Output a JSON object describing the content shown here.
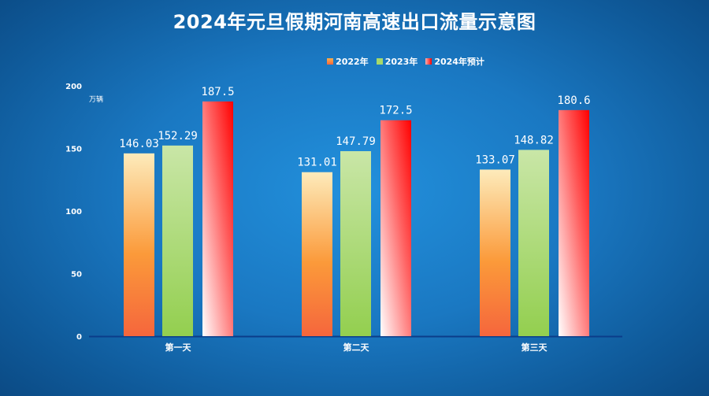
{
  "chart_data": {
    "type": "bar",
    "title": "2024年元旦假期河南高速出口流量示意图",
    "ylabel": "万辆",
    "xlabel": "",
    "ylim": [
      0,
      200
    ],
    "yticks": [
      0,
      50,
      100,
      150,
      200
    ],
    "categories": [
      "第一天",
      "第二天",
      "第三天"
    ],
    "legend_position": "top",
    "grid": false,
    "series": [
      {
        "name": "2022年",
        "values": [
          146.03,
          131.01,
          133.07
        ],
        "labels": [
          "146.03",
          "131.01",
          "133.07"
        ],
        "colors": [
          "#fdebbb",
          "#f5663c"
        ]
      },
      {
        "name": "2023年",
        "values": [
          152.29,
          147.79,
          148.82
        ],
        "labels": [
          "152.29",
          "147.79",
          "148.82"
        ],
        "colors": [
          "#c9e6a7",
          "#93cf4f"
        ]
      },
      {
        "name": "2024年预计",
        "values": [
          187.5,
          172.5,
          180.6
        ],
        "labels": [
          "187.5",
          "172.5",
          "180.6"
        ],
        "colors": [
          "#ffffff",
          "#ff0000"
        ]
      }
    ]
  }
}
